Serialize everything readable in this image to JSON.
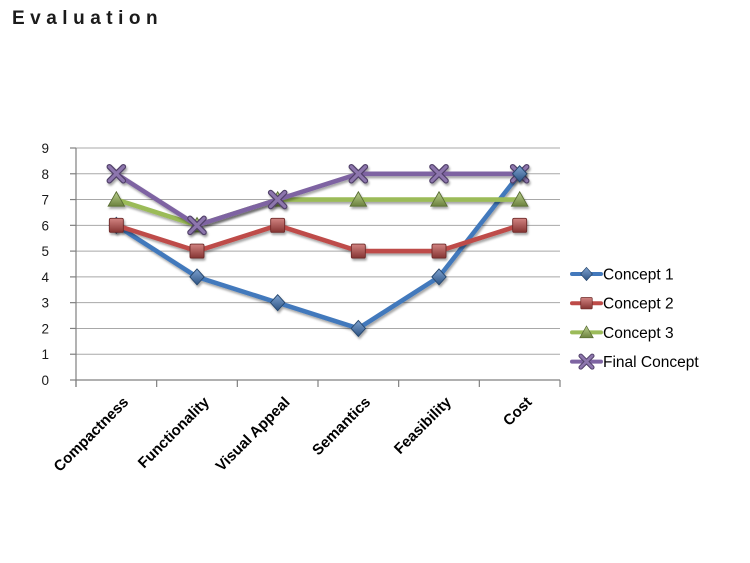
{
  "chart_data": {
    "type": "line",
    "title": "Evaluation",
    "categories": [
      "Compactness",
      "Functionality",
      "Visual Appeal",
      "Semantics",
      "Feasibility",
      "Cost"
    ],
    "series": [
      {
        "name": "Concept 1",
        "marker": "diamond",
        "color": "#4379BC",
        "values": [
          6,
          4,
          3,
          2,
          4,
          8
        ]
      },
      {
        "name": "Concept 2",
        "marker": "square",
        "color": "#BE4B48",
        "values": [
          6,
          5,
          6,
          5,
          5,
          6
        ]
      },
      {
        "name": "Concept 3",
        "marker": "triangle",
        "color": "#9BBB59",
        "values": [
          7,
          6,
          7,
          7,
          7,
          7
        ]
      },
      {
        "name": "Final Concept",
        "marker": "x",
        "color": "#7E64A2",
        "values": [
          8,
          6,
          7,
          8,
          8,
          8
        ]
      }
    ],
    "y_ticks": [
      0,
      1,
      2,
      3,
      4,
      5,
      6,
      7,
      8,
      9
    ],
    "ylim": [
      0,
      9
    ],
    "grid": true,
    "legend_position": "right",
    "axis_color": "#808080",
    "grid_color": "#A8A8A8",
    "background": "#FFFFFF"
  }
}
